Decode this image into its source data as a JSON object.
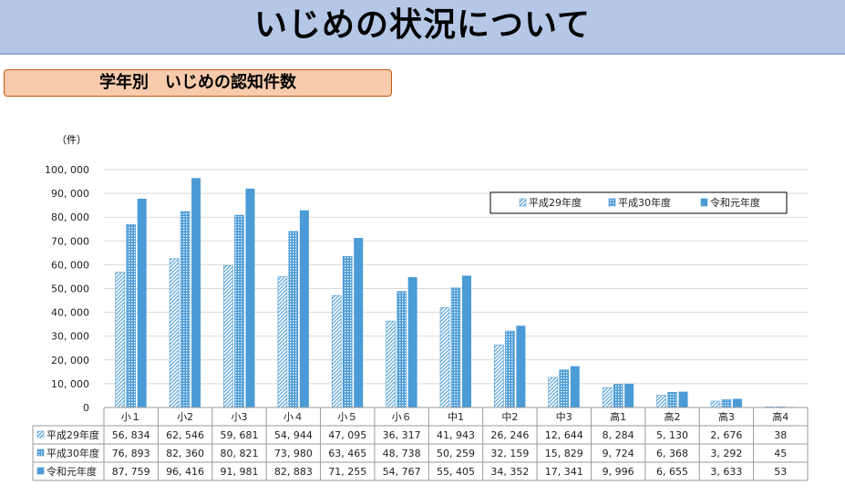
{
  "header": {
    "title": "いじめの状況について"
  },
  "section": {
    "title": "学年別　いじめの認知件数"
  },
  "colors": {
    "header_bg": "#b4c7e7",
    "section_bg": "#f8cbad",
    "bar": "#4a9bd6"
  },
  "chart_data": {
    "type": "bar",
    "y_unit_label": "（件）",
    "categories": [
      "小１",
      "小2",
      "小3",
      "小４",
      "小５",
      "小６",
      "中1",
      "中2",
      "中3",
      "高1",
      "高2",
      "高3",
      "高4"
    ],
    "ylim": [
      0,
      100000
    ],
    "yticks": [
      "0",
      "10, 000",
      "20, 000",
      "30, 000",
      "40, 000",
      "50, 000",
      "60, 000",
      "70, 000",
      "80, 000",
      "90, 000",
      "100, 000"
    ],
    "grid": true,
    "legend_position": "top-right",
    "series": [
      {
        "name": "平成29年度",
        "pattern": "diagonal-hatch",
        "values": [
          56834,
          62546,
          59681,
          54944,
          47095,
          36317,
          41943,
          26246,
          12644,
          8284,
          5130,
          2676,
          38
        ],
        "labels": [
          "56, 834",
          "62, 546",
          "59, 681",
          "54, 944",
          "47, 095",
          "36, 317",
          "41, 943",
          "26, 246",
          "12, 644",
          "8, 284",
          "5, 130",
          "2, 676",
          "38"
        ]
      },
      {
        "name": "平成30年度",
        "pattern": "dotted-grid",
        "values": [
          76893,
          82360,
          80821,
          73980,
          63465,
          48738,
          50259,
          32159,
          15829,
          9724,
          6368,
          3292,
          45
        ],
        "labels": [
          "76, 893",
          "82, 360",
          "80, 821",
          "73, 980",
          "63, 465",
          "48, 738",
          "50, 259",
          "32, 159",
          "15, 829",
          "9, 724",
          "6, 368",
          "3, 292",
          "45"
        ]
      },
      {
        "name": "令和元年度",
        "pattern": "solid",
        "values": [
          87759,
          96416,
          91981,
          82883,
          71255,
          54767,
          55405,
          34352,
          17341,
          9996,
          6655,
          3633,
          53
        ],
        "labels": [
          "87, 759",
          "96, 416",
          "91, 981",
          "82, 883",
          "71, 255",
          "54, 767",
          "55, 405",
          "34, 352",
          "17, 341",
          "9, 996",
          "6, 655",
          "3, 633",
          "53"
        ]
      }
    ]
  }
}
